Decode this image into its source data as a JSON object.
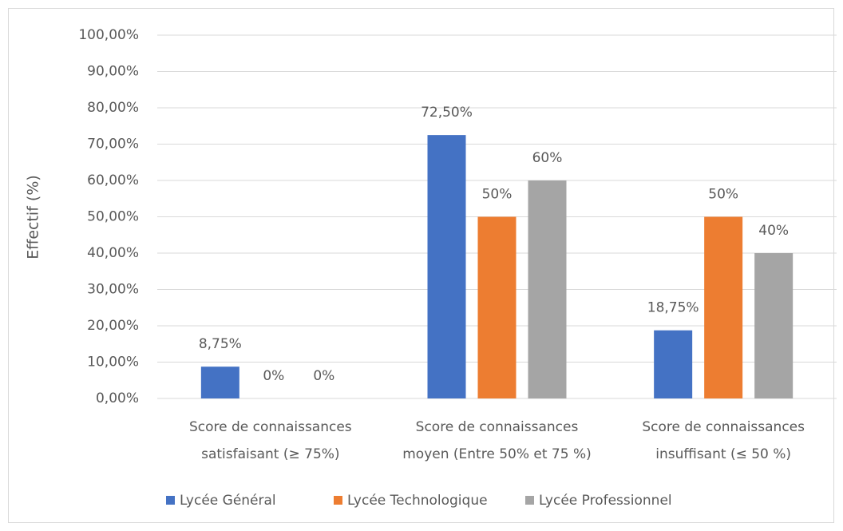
{
  "chart_data": {
    "type": "bar",
    "y_label": "Effectif (%)",
    "categories": [
      [
        "Score de connaissances",
        "satisfaisant (≥ 75%)"
      ],
      [
        "Score de connaissances",
        "moyen (Entre 50% et 75 %)"
      ],
      [
        "Score de connaissances",
        "insuffisant (≤ 50 %)"
      ]
    ],
    "series": [
      {
        "name": "Lycée Général",
        "color": "#4472c4",
        "values": [
          8.75,
          72.5,
          18.75
        ],
        "value_labels": [
          "8,75%",
          "72,50%",
          "18,75%"
        ]
      },
      {
        "name": "Lycée Technologique",
        "color": "#ed7d31",
        "values": [
          0,
          50,
          50
        ],
        "value_labels": [
          "0%",
          "50%",
          "50%"
        ]
      },
      {
        "name": "Lycée Professionnel",
        "color": "#a5a5a5",
        "values": [
          0,
          60,
          40
        ],
        "value_labels": [
          "0%",
          "60%",
          "40%"
        ]
      }
    ],
    "ylim": [
      0,
      100
    ],
    "yticks": [
      {
        "value": 0,
        "label": "0,00%"
      },
      {
        "value": 10,
        "label": "10,00%"
      },
      {
        "value": 20,
        "label": "20,00%"
      },
      {
        "value": 30,
        "label": "30,00%"
      },
      {
        "value": 40,
        "label": "40,00%"
      },
      {
        "value": 50,
        "label": "50,00%"
      },
      {
        "value": 60,
        "label": "60,00%"
      },
      {
        "value": 70,
        "label": "70,00%"
      },
      {
        "value": 80,
        "label": "80,00%"
      },
      {
        "value": 90,
        "label": "90,00%"
      },
      {
        "value": 100,
        "label": "100,00%"
      }
    ],
    "grid": true,
    "legend": "bottom"
  }
}
